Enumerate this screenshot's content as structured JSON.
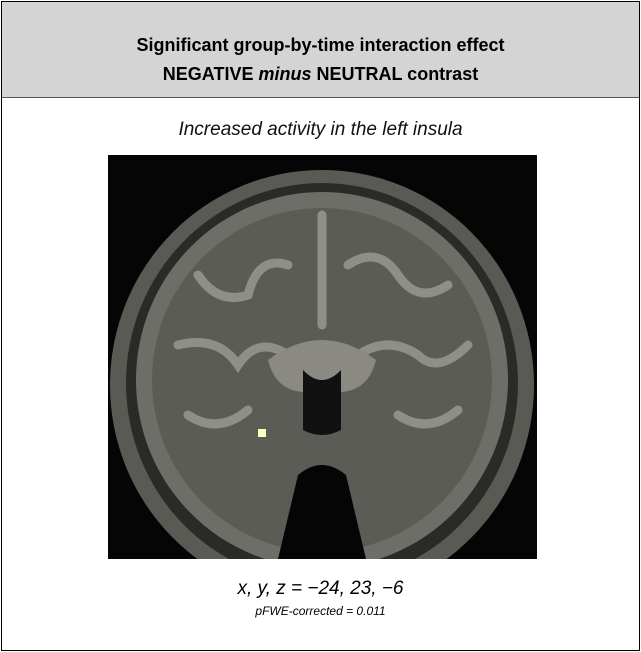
{
  "header": {
    "title_line1": "Significant group-by-time interaction effect",
    "title_line2": [
      "NEGATIVE",
      "minus",
      "NEUTRAL contrast"
    ]
  },
  "caption": "Increased activity in the left insula",
  "figure": {
    "coordinates": "x, y, z = −24, 23, −6",
    "statistic": "pFWE-corrected = 0.011"
  }
}
